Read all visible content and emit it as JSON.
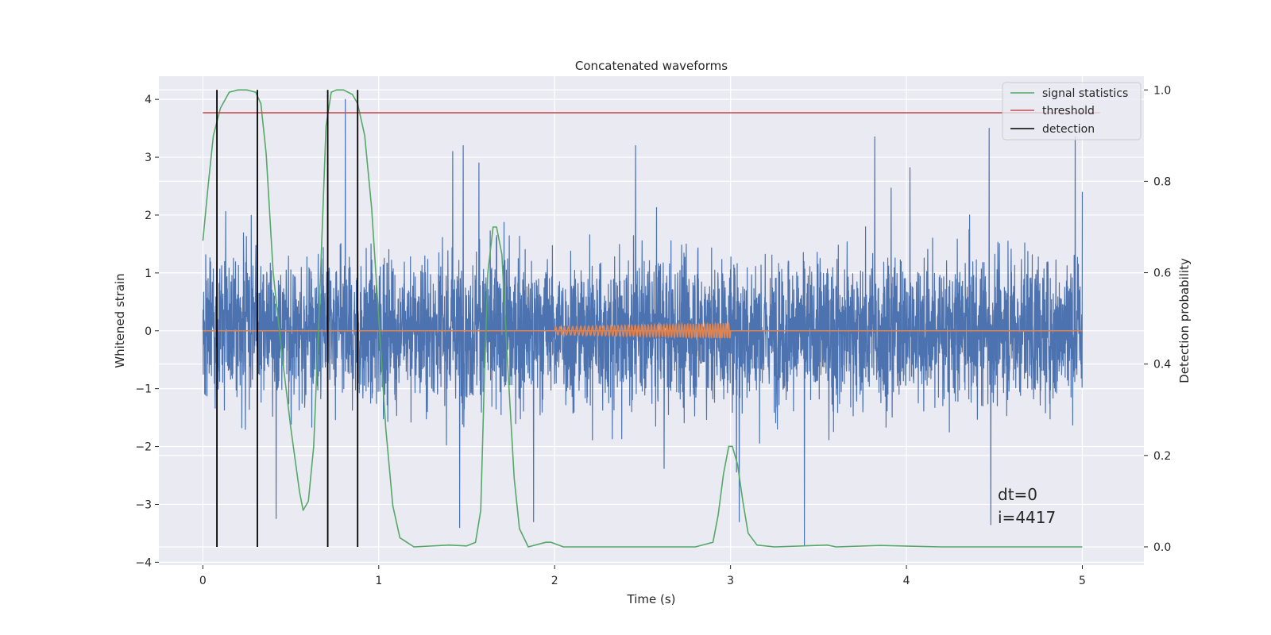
{
  "chart_data": {
    "type": "line",
    "title": "Concatenated waveforms",
    "xlabel": "Time (s)",
    "ylabel": "Whitened strain",
    "ylabel_right": "Detection probability",
    "xlim": [
      -0.25,
      5.35
    ],
    "ylim": [
      -4.05,
      4.4
    ],
    "ylim_right": [
      -0.04,
      1.03
    ],
    "xticks": [
      0,
      1,
      2,
      3,
      4,
      5
    ],
    "yticks": [
      -4,
      -3,
      -2,
      -1,
      0,
      1,
      2,
      3,
      4
    ],
    "yticks_right": [
      0.0,
      0.2,
      0.4,
      0.6,
      0.8,
      1.0
    ],
    "grid": true,
    "legend_position": "top-right",
    "legend": [
      {
        "label": "signal statistics",
        "color": "#55a868"
      },
      {
        "label": "threshold",
        "color": "#c44e52"
      },
      {
        "label": "detection",
        "color": "#000000"
      }
    ],
    "series": [
      {
        "name": "whitened noise",
        "axis": "left",
        "color": "#4c72b0",
        "style": "dense-noise",
        "t_range": [
          0,
          5
        ],
        "envelope_typical": 1.1,
        "peaks": [
          {
            "t": 0.31,
            "y": 3.2
          },
          {
            "t": 0.81,
            "y": 4.0
          },
          {
            "t": 1.42,
            "y": 3.1
          },
          {
            "t": 1.48,
            "y": 3.2
          },
          {
            "t": 1.57,
            "y": 2.9
          },
          {
            "t": 2.46,
            "y": 3.2
          },
          {
            "t": 3.82,
            "y": 3.35
          },
          {
            "t": 4.47,
            "y": 3.5
          },
          {
            "t": 4.96,
            "y": 3.35
          },
          {
            "t": 5.0,
            "y": 2.4
          },
          {
            "t": 1.46,
            "y": -3.4
          },
          {
            "t": 1.88,
            "y": -3.3
          },
          {
            "t": 3.42,
            "y": -3.7
          },
          {
            "t": 3.05,
            "y": -3.3
          },
          {
            "t": 4.48,
            "y": -3.35
          }
        ]
      },
      {
        "name": "injected signal",
        "axis": "left",
        "color": "#dd8452",
        "t_range": [
          2.0,
          3.0
        ],
        "amplitude_range": [
          0.07,
          0.13
        ],
        "cycles": 40
      },
      {
        "name": "signal statistics",
        "axis": "right",
        "color": "#55a868",
        "x": [
          0.0,
          0.03,
          0.06,
          0.1,
          0.15,
          0.2,
          0.25,
          0.3,
          0.33,
          0.36,
          0.4,
          0.45,
          0.5,
          0.55,
          0.57,
          0.6,
          0.63,
          0.66,
          0.7,
          0.73,
          0.76,
          0.8,
          0.85,
          0.88,
          0.92,
          0.96,
          1.0,
          1.04,
          1.08,
          1.12,
          1.2,
          1.4,
          1.5,
          1.55,
          1.58,
          1.6,
          1.62,
          1.65,
          1.67,
          1.7,
          1.73,
          1.77,
          1.8,
          1.85,
          1.95,
          1.98,
          2.05,
          2.4,
          2.8,
          2.9,
          2.93,
          2.96,
          2.99,
          3.01,
          3.04,
          3.07,
          3.1,
          3.15,
          3.25,
          3.55,
          3.6,
          3.85,
          4.2,
          4.6,
          5.0
        ],
        "y": [
          0.67,
          0.79,
          0.9,
          0.96,
          0.995,
          1.0,
          1.0,
          0.995,
          0.97,
          0.86,
          0.6,
          0.42,
          0.26,
          0.12,
          0.08,
          0.1,
          0.22,
          0.5,
          0.92,
          0.995,
          1.0,
          1.0,
          0.99,
          0.97,
          0.9,
          0.74,
          0.5,
          0.26,
          0.09,
          0.02,
          0.0,
          0.004,
          0.002,
          0.01,
          0.08,
          0.36,
          0.6,
          0.7,
          0.7,
          0.64,
          0.42,
          0.15,
          0.04,
          0.0,
          0.01,
          0.01,
          0.0,
          0.0,
          0.0,
          0.01,
          0.07,
          0.16,
          0.22,
          0.22,
          0.18,
          0.1,
          0.03,
          0.004,
          0.0,
          0.004,
          0.0,
          0.003,
          0.0,
          0.0,
          0.0
        ]
      },
      {
        "name": "threshold",
        "axis": "right",
        "color": "#c44e52",
        "value": 0.95,
        "x_range": [
          0,
          5.1
        ]
      },
      {
        "name": "detection",
        "axis": "right",
        "color": "#000000",
        "times": [
          0.08,
          0.31,
          0.71,
          0.88
        ],
        "y_range": [
          0.0,
          1.0
        ]
      }
    ],
    "annotations": [
      "dt=0",
      "i=4417"
    ]
  }
}
